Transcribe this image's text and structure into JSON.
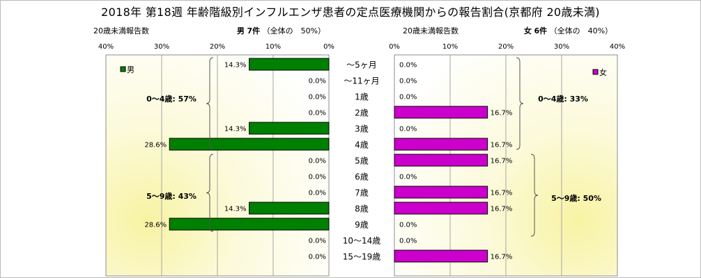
{
  "title": "2018年 第18週 年齢階級別インフルエンザ患者の定点医療機関からの報告割合(京都府 20歳未満)",
  "left_header": {
    "label": "20歳未満報告数",
    "sex": "男",
    "count": "7件",
    "total": "（全体の　50%）"
  },
  "right_header": {
    "label": "20歳未満報告数",
    "sex": "女",
    "count": "6件",
    "total": "（全体の　40%）"
  },
  "chart_data": {
    "type": "bar",
    "orientation": "horizontal-pyramid",
    "categories": [
      "～5ヶ月",
      "～11ヶ月",
      "1歳",
      "2歳",
      "3歳",
      "4歳",
      "5歳",
      "6歳",
      "7歳",
      "8歳",
      "9歳",
      "10～14歳",
      "15～19歳"
    ],
    "xlim": [
      0,
      40
    ],
    "x_ticks": [
      "40%",
      "30%",
      "20%",
      "10%",
      "0%"
    ],
    "x_ticks_right": [
      "0%",
      "10%",
      "20%",
      "30%",
      "40%"
    ],
    "series": [
      {
        "name": "男",
        "color": "#008000",
        "values": [
          14.3,
          0,
          0,
          0,
          14.3,
          28.6,
          0,
          0,
          0,
          14.3,
          28.6,
          0,
          0
        ],
        "labels": [
          "14.3%",
          "0.0%",
          "0.0%",
          "0.0%",
          "14.3%",
          "28.6%",
          "0.0%",
          "0.0%",
          "0.0%",
          "14.3%",
          "28.6%",
          "0.0%",
          "0.0%"
        ]
      },
      {
        "name": "女",
        "color": "#cc00cc",
        "values": [
          0,
          0,
          0,
          16.7,
          0,
          16.7,
          16.7,
          0,
          16.7,
          16.7,
          0,
          0,
          16.7
        ],
        "labels": [
          "0.0%",
          "0.0%",
          "0.0%",
          "16.7%",
          "0.0%",
          "16.7%",
          "16.7%",
          "0.0%",
          "16.7%",
          "16.7%",
          "0.0%",
          "0.0%",
          "16.7%"
        ]
      }
    ],
    "annotations": {
      "male_0_4": "0～4歳: 57%",
      "male_5_9": "5～9歳: 43%",
      "female_0_4": "0～4歳: 33%",
      "female_5_9": "5～9歳: 50%"
    },
    "grid": true,
    "legend": "top-inside"
  }
}
